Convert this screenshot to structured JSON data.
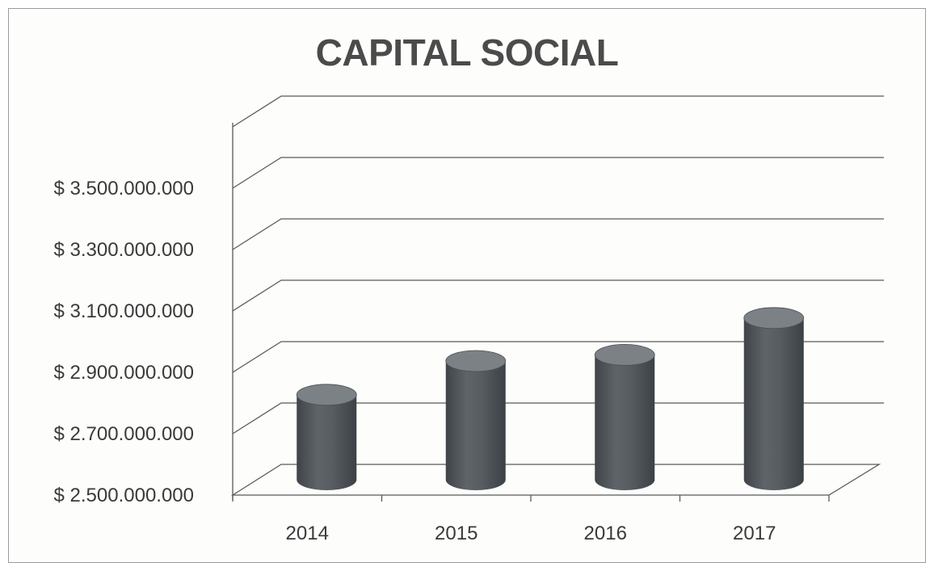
{
  "chart_data": {
    "type": "bar",
    "title": "CAPITAL SOCIAL",
    "categories": [
      "2014",
      "2015",
      "2016",
      "2017"
    ],
    "series": [
      {
        "values": [
          2790000000,
          2900000000,
          2920000000,
          3040000000
        ]
      }
    ],
    "ylim": [
      2500000000,
      3700000000
    ],
    "yticks": [
      2500000000,
      2700000000,
      2900000000,
      3100000000,
      3300000000,
      3500000000
    ],
    "ytick_labels": [
      "$ 2.500.000.000",
      "$ 2.700.000.000",
      "$ 2.900.000.000",
      "$ 3.100.000.000",
      "$ 3.300.000.000",
      "$ 3.500.000.000"
    ],
    "bar_shape": "cylinder",
    "three_d": true,
    "grid": true,
    "legend": "none",
    "colors": {
      "bar": "#54595f",
      "bar_highlight": "#6f7479",
      "bar_top": "#7c8186",
      "grid": "#5a5a5a",
      "title": "#4b4b4b"
    }
  }
}
